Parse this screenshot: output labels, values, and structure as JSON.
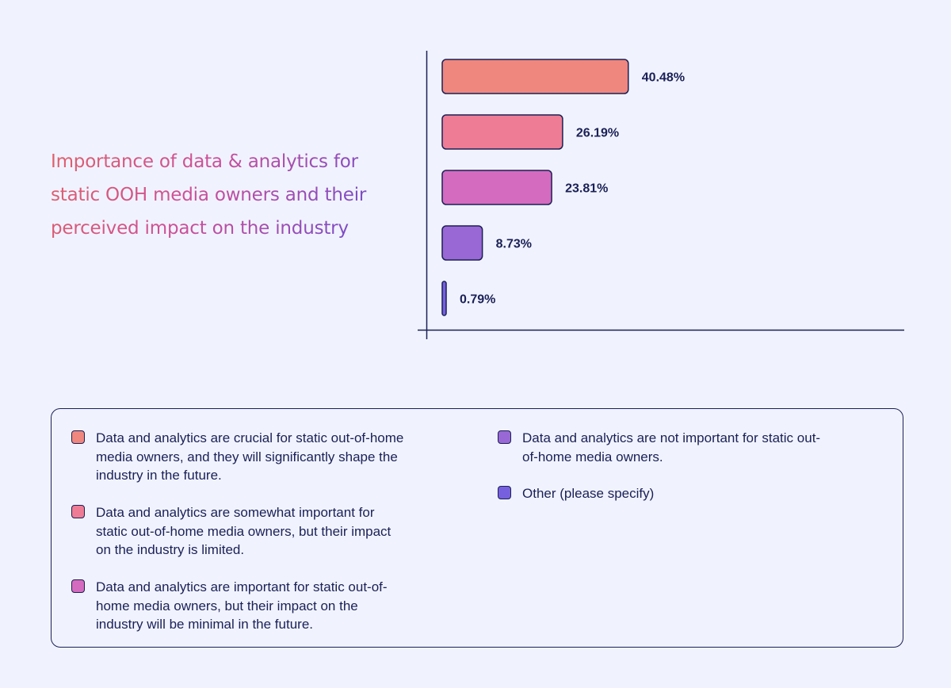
{
  "title": "Importance of data & analytics for static OOH media owners and their perceived impact on the industry",
  "colors": {
    "background": "#f0f3fd",
    "ink": "#1b2057",
    "c1": "#ef877f",
    "c2": "#ee7c95",
    "c3": "#d46bbf",
    "c4": "#9968d4",
    "c5": "#7660de"
  },
  "chart_data": {
    "type": "bar",
    "orientation": "horizontal",
    "title": "Importance of data & analytics for static OOH media owners and their perceived impact on the industry",
    "xlabel": "",
    "ylabel": "",
    "unit": "%",
    "categories": [
      "Data and analytics are crucial for static out-of-home media owners, and they will significantly shape the industry in the future.",
      "Data and analytics are somewhat important for static out-of-home media owners, but their impact on the industry is limited.",
      "Data and analytics are important for static out-of-home media owners, but their impact on the industry will be minimal in the future.",
      "Data and analytics are not important for static out-of-home media owners.",
      "Other (please specify)"
    ],
    "values": [
      40.48,
      26.19,
      23.81,
      8.73,
      0.79
    ],
    "labels": [
      "40.48%",
      "26.19%",
      "23.81%",
      "8.73%",
      "0.79%"
    ],
    "colors": [
      "#ef877f",
      "#ee7c95",
      "#d46bbf",
      "#9968d4",
      "#7660de"
    ],
    "xlim": [
      0,
      100
    ],
    "grid": false,
    "legend_position": "bottom"
  },
  "legend": [
    {
      "label": "Data and analytics are crucial for static out-of-home media owners, and they will significantly shape the industry in the future.",
      "color": "#ef877f"
    },
    {
      "label": "Data and analytics are somewhat important for static out-of-home media owners, but their impact on the industry is limited.",
      "color": "#ee7c95"
    },
    {
      "label": "Data and analytics are important for static out-of-home media owners, but their impact on the industry will be minimal in the future.",
      "color": "#d46bbf"
    },
    {
      "label": "Data and analytics are not important for static out-of-home media owners.",
      "color": "#9968d4"
    },
    {
      "label": "Other (please specify)",
      "color": "#7660de"
    }
  ]
}
